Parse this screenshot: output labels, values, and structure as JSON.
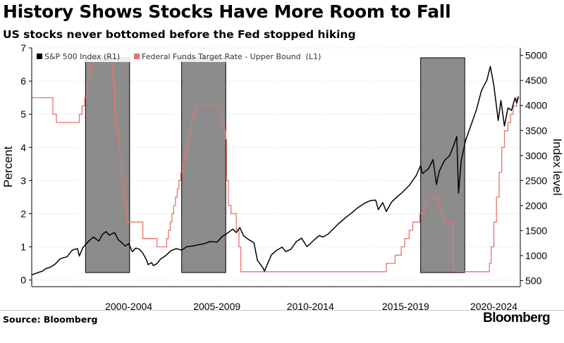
{
  "header": {
    "title": "History Shows Stocks Have More Room to Fall",
    "subtitle": "US stocks never bottomed before the Fed stopped hiking"
  },
  "footer": {
    "source": "Source: Bloomberg",
    "brand": "Bloomberg"
  },
  "colors": {
    "sp500": "#000000",
    "fed_rate": "#e8736e",
    "shade": "#8c8c8c"
  },
  "chart_data": {
    "type": "line",
    "title": "History Shows Stocks Have More Room to Fall",
    "subtitle": "US stocks never bottomed before the Fed stopped hiking",
    "legend": {
      "position": "top-left",
      "entries": [
        "S&P 500 Index (R1)",
        "Federal Funds Target Rate - Upper Bound  (L1)"
      ]
    },
    "x_range": [
      1996.0,
      2023.7
    ],
    "x_ticks": [
      {
        "label": "2000-2004",
        "x": 2001.5
      },
      {
        "label": "2005-2009",
        "x": 2006.5
      },
      {
        "label": "2010-2014",
        "x": 2011.8
      },
      {
        "label": "2015-2019",
        "x": 2017.2
      },
      {
        "label": "2020-2024",
        "x": 2022.2
      }
    ],
    "y_left": {
      "label": "Percent",
      "range": [
        -0.2,
        7.0
      ],
      "ticks": [
        0,
        1,
        2,
        3,
        4,
        5,
        6,
        7
      ]
    },
    "y_right": {
      "label": "Index level",
      "range": [
        380,
        5150
      ],
      "ticks": [
        500,
        1000,
        1500,
        2000,
        2500,
        3000,
        3500,
        4000,
        4500,
        5000
      ]
    },
    "shaded_periods": [
      [
        1999.05,
        2001.55
      ],
      [
        2004.5,
        2007.0
      ],
      [
        2018.05,
        2020.55
      ]
    ],
    "series": [
      {
        "name": "S&P 500 Index (R1)",
        "axis": "right",
        "points": [
          [
            1996.0,
            615
          ],
          [
            1996.2,
            640
          ],
          [
            1996.4,
            665
          ],
          [
            1996.6,
            690
          ],
          [
            1996.8,
            740
          ],
          [
            1997.0,
            760
          ],
          [
            1997.3,
            820
          ],
          [
            1997.6,
            930
          ],
          [
            1997.8,
            960
          ],
          [
            1998.0,
            975
          ],
          [
            1998.3,
            1110
          ],
          [
            1998.6,
            1140
          ],
          [
            1998.7,
            990
          ],
          [
            1998.9,
            1160
          ],
          [
            1999.2,
            1280
          ],
          [
            1999.5,
            1370
          ],
          [
            1999.8,
            1290
          ],
          [
            2000.0,
            1420
          ],
          [
            2000.2,
            1480
          ],
          [
            2000.4,
            1410
          ],
          [
            2000.7,
            1460
          ],
          [
            2000.9,
            1320
          ],
          [
            2001.1,
            1260
          ],
          [
            2001.3,
            1190
          ],
          [
            2001.5,
            1240
          ],
          [
            2001.7,
            1080
          ],
          [
            2001.9,
            1150
          ],
          [
            2002.1,
            1130
          ],
          [
            2002.3,
            1050
          ],
          [
            2002.5,
            920
          ],
          [
            2002.6,
            820
          ],
          [
            2002.8,
            860
          ],
          [
            2002.9,
            800
          ],
          [
            2003.1,
            840
          ],
          [
            2003.3,
            930
          ],
          [
            2003.6,
            1000
          ],
          [
            2003.9,
            1100
          ],
          [
            2004.2,
            1140
          ],
          [
            2004.5,
            1110
          ],
          [
            2004.8,
            1180
          ],
          [
            2005.1,
            1190
          ],
          [
            2005.5,
            1220
          ],
          [
            2005.8,
            1240
          ],
          [
            2006.1,
            1280
          ],
          [
            2006.5,
            1270
          ],
          [
            2006.8,
            1380
          ],
          [
            2007.1,
            1450
          ],
          [
            2007.4,
            1530
          ],
          [
            2007.6,
            1460
          ],
          [
            2007.8,
            1560
          ],
          [
            2008.0,
            1400
          ],
          [
            2008.3,
            1320
          ],
          [
            2008.6,
            1260
          ],
          [
            2008.8,
            900
          ],
          [
            2008.9,
            860
          ],
          [
            2009.1,
            760
          ],
          [
            2009.2,
            690
          ],
          [
            2009.35,
            820
          ],
          [
            2009.6,
            1020
          ],
          [
            2009.9,
            1110
          ],
          [
            2010.2,
            1170
          ],
          [
            2010.4,
            1080
          ],
          [
            2010.7,
            1130
          ],
          [
            2011.0,
            1280
          ],
          [
            2011.3,
            1350
          ],
          [
            2011.6,
            1180
          ],
          [
            2011.8,
            1240
          ],
          [
            2012.0,
            1310
          ],
          [
            2012.3,
            1400
          ],
          [
            2012.5,
            1370
          ],
          [
            2012.8,
            1430
          ],
          [
            2013.0,
            1500
          ],
          [
            2013.4,
            1640
          ],
          [
            2013.8,
            1760
          ],
          [
            2014.1,
            1840
          ],
          [
            2014.5,
            1960
          ],
          [
            2014.9,
            2050
          ],
          [
            2015.2,
            2100
          ],
          [
            2015.5,
            2110
          ],
          [
            2015.65,
            1920
          ],
          [
            2015.9,
            2060
          ],
          [
            2016.1,
            1880
          ],
          [
            2016.4,
            2070
          ],
          [
            2016.7,
            2170
          ],
          [
            2017.0,
            2260
          ],
          [
            2017.4,
            2400
          ],
          [
            2017.8,
            2600
          ],
          [
            2018.05,
            2800
          ],
          [
            2018.15,
            2640
          ],
          [
            2018.5,
            2740
          ],
          [
            2018.75,
            2920
          ],
          [
            2018.95,
            2420
          ],
          [
            2019.1,
            2680
          ],
          [
            2019.4,
            2900
          ],
          [
            2019.7,
            3000
          ],
          [
            2019.95,
            3230
          ],
          [
            2020.1,
            3380
          ],
          [
            2020.2,
            2250
          ],
          [
            2020.35,
            2900
          ],
          [
            2020.6,
            3300
          ],
          [
            2020.9,
            3600
          ],
          [
            2021.2,
            3900
          ],
          [
            2021.5,
            4300
          ],
          [
            2021.8,
            4500
          ],
          [
            2022.0,
            4780
          ],
          [
            2022.2,
            4400
          ],
          [
            2022.45,
            3700
          ],
          [
            2022.6,
            4100
          ],
          [
            2022.8,
            3590
          ],
          [
            2023.0,
            3950
          ],
          [
            2023.2,
            3900
          ],
          [
            2023.4,
            4150
          ],
          [
            2023.5,
            4050
          ],
          [
            2023.6,
            4180
          ]
        ]
      },
      {
        "name": "Federal Funds Target Rate - Upper Bound  (L1)",
        "axis": "left",
        "step": true,
        "points": [
          [
            1996.0,
            5.5
          ],
          [
            1996.9,
            5.5
          ],
          [
            1997.2,
            5.0
          ],
          [
            1997.4,
            4.75
          ],
          [
            1998.1,
            4.75
          ],
          [
            1998.5,
            4.75
          ],
          [
            1998.7,
            5.0
          ],
          [
            1998.85,
            5.25
          ],
          [
            1999.0,
            5.5
          ],
          [
            1999.15,
            6.0
          ],
          [
            1999.3,
            6.5
          ],
          [
            1999.5,
            6.75
          ],
          [
            2000.4,
            6.75
          ],
          [
            2000.5,
            6.5
          ],
          [
            2000.6,
            6.0
          ],
          [
            2000.7,
            5.0
          ],
          [
            2000.8,
            4.5
          ],
          [
            2000.95,
            3.75
          ],
          [
            2001.1,
            3.0
          ],
          [
            2001.25,
            2.25
          ],
          [
            2001.4,
            1.75
          ],
          [
            2002.0,
            1.75
          ],
          [
            2002.3,
            1.25
          ],
          [
            2002.6,
            1.25
          ],
          [
            2003.1,
            1.0
          ],
          [
            2003.4,
            1.0
          ],
          [
            2003.65,
            1.25
          ],
          [
            2003.75,
            1.5
          ],
          [
            2003.85,
            1.75
          ],
          [
            2003.95,
            2.0
          ],
          [
            2004.05,
            2.25
          ],
          [
            2004.15,
            2.5
          ],
          [
            2004.25,
            2.75
          ],
          [
            2004.35,
            3.0
          ],
          [
            2004.45,
            3.25
          ],
          [
            2004.55,
            3.5
          ],
          [
            2004.65,
            3.75
          ],
          [
            2004.75,
            4.0
          ],
          [
            2004.85,
            4.25
          ],
          [
            2004.95,
            4.5
          ],
          [
            2005.05,
            4.75
          ],
          [
            2005.15,
            5.0
          ],
          [
            2005.3,
            5.25
          ],
          [
            2006.65,
            5.25
          ],
          [
            2006.75,
            4.75
          ],
          [
            2006.9,
            4.5
          ],
          [
            2007.0,
            4.25
          ],
          [
            2007.05,
            3.0
          ],
          [
            2007.15,
            2.25
          ],
          [
            2007.3,
            2.0
          ],
          [
            2007.6,
            1.5
          ],
          [
            2007.75,
            1.0
          ],
          [
            2007.85,
            0.25
          ],
          [
            2016.0,
            0.25
          ],
          [
            2016.1,
            0.5
          ],
          [
            2016.6,
            0.75
          ],
          [
            2016.95,
            1.0
          ],
          [
            2017.15,
            1.25
          ],
          [
            2017.4,
            1.5
          ],
          [
            2017.6,
            1.75
          ],
          [
            2018.0,
            2.0
          ],
          [
            2018.25,
            2.25
          ],
          [
            2018.45,
            2.5
          ],
          [
            2019.05,
            2.25
          ],
          [
            2019.2,
            2.0
          ],
          [
            2019.35,
            1.75
          ],
          [
            2019.65,
            1.75
          ],
          [
            2019.9,
            0.25
          ],
          [
            2021.8,
            0.25
          ],
          [
            2021.95,
            0.5
          ],
          [
            2022.05,
            1.0
          ],
          [
            2022.2,
            1.75
          ],
          [
            2022.35,
            2.5
          ],
          [
            2022.5,
            3.25
          ],
          [
            2022.65,
            4.0
          ],
          [
            2022.8,
            4.5
          ],
          [
            2023.0,
            4.75
          ],
          [
            2023.15,
            5.0
          ],
          [
            2023.3,
            5.25
          ],
          [
            2023.5,
            5.5
          ]
        ]
      }
    ]
  }
}
